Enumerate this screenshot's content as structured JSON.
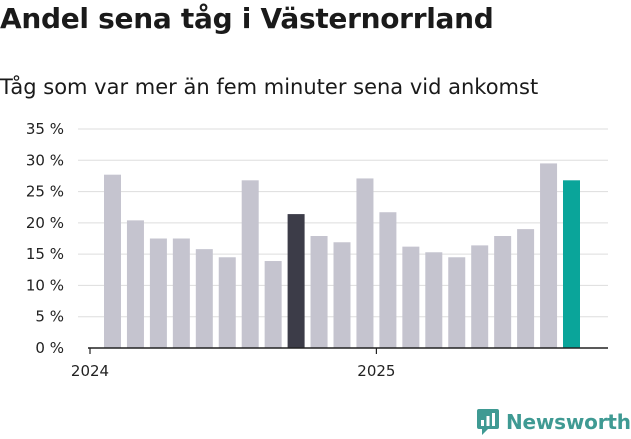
{
  "title": "Andel sena tåg i Västernorrland",
  "subtitle": "Tåg som var mer än fem minuter sena vid ankomst",
  "brand": {
    "name": "Newsworthy",
    "icon": "newsworthy-logo-icon",
    "color": "#3f9a93"
  },
  "chart_data": {
    "type": "bar",
    "title": "Andel sena tåg i Västernorrland",
    "subtitle": "Tåg som var mer än fem minuter sena vid ankomst",
    "xlabel": "",
    "ylabel": "",
    "ylim": [
      0,
      35
    ],
    "yticks": [
      0,
      5,
      10,
      15,
      20,
      25,
      30,
      35
    ],
    "ytick_labels": [
      "0 %",
      "5 %",
      "10 %",
      "15 %",
      "20 %",
      "25 %",
      "30 %",
      "35 %"
    ],
    "x_tick_labels": [
      {
        "label": "2024",
        "at_index": 0
      },
      {
        "label": "2025",
        "at_index": 12
      }
    ],
    "grid": true,
    "values": [
      27.7,
      20.4,
      17.5,
      17.5,
      15.8,
      14.5,
      26.8,
      13.9,
      21.4,
      17.9,
      16.9,
      27.1,
      21.7,
      16.2,
      15.3,
      14.5,
      16.4,
      17.9,
      19.0,
      29.5,
      26.8
    ],
    "highlight": [
      {
        "index": 8,
        "color": "#3c3c48"
      },
      {
        "index": 20,
        "color": "#0aa59a"
      }
    ],
    "colors": {
      "default": "#c5c4cf",
      "grid": "#dddddd",
      "axis": "#222222"
    }
  }
}
